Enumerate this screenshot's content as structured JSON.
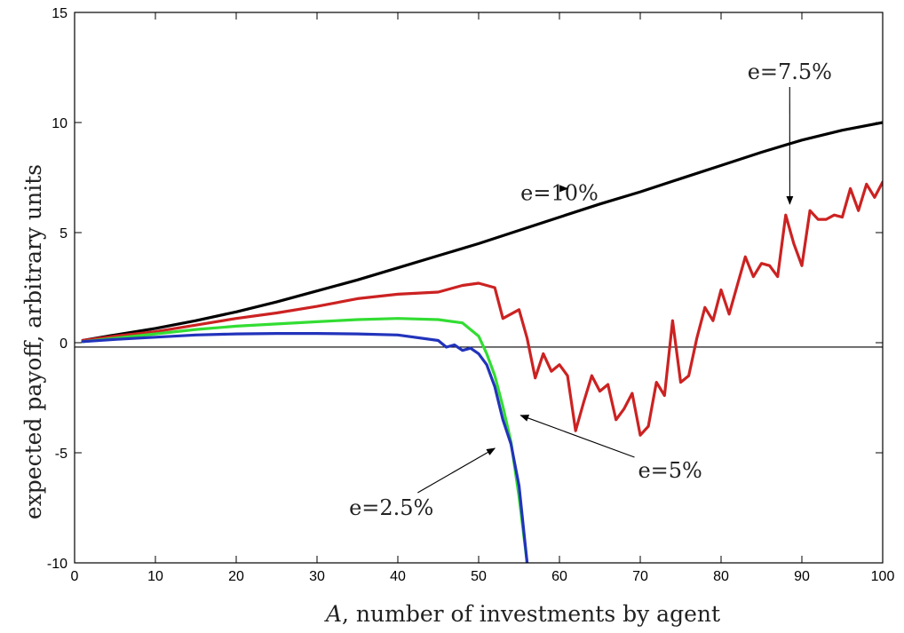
{
  "chart_data": {
    "type": "line",
    "title": "",
    "xlabel_var": "A",
    "xlabel_rest": ", number of investments by agent",
    "ylabel": "expected payoff, arbitrary units",
    "xlim": [
      0,
      100
    ],
    "ylim": [
      -10,
      15
    ],
    "xticks": [
      0,
      10,
      20,
      30,
      40,
      50,
      60,
      70,
      80,
      90,
      100
    ],
    "yticks": [
      -10,
      -5,
      0,
      5,
      10,
      15
    ],
    "reference_line_y": -0.2,
    "grid": false,
    "series": [
      {
        "name": "e=10%",
        "color": "#000000",
        "x": [
          1,
          5,
          10,
          15,
          20,
          25,
          30,
          35,
          40,
          45,
          50,
          55,
          60,
          65,
          70,
          75,
          80,
          85,
          90,
          95,
          100
        ],
        "y": [
          0.1,
          0.35,
          0.65,
          1.0,
          1.4,
          1.85,
          2.35,
          2.85,
          3.4,
          3.95,
          4.5,
          5.1,
          5.7,
          6.3,
          6.85,
          7.45,
          8.05,
          8.65,
          9.2,
          9.65,
          10.0
        ]
      },
      {
        "name": "e=7.5%",
        "color": "#cc2222",
        "x": [
          1,
          5,
          10,
          15,
          20,
          25,
          30,
          35,
          40,
          45,
          48,
          50,
          52,
          53,
          55,
          56,
          57,
          58,
          59,
          60,
          61,
          62,
          63,
          64,
          65,
          66,
          67,
          68,
          69,
          70,
          71,
          72,
          73,
          74,
          75,
          76,
          77,
          78,
          79,
          80,
          81,
          82,
          83,
          84,
          85,
          86,
          87,
          88,
          89,
          90,
          91,
          92,
          93,
          94,
          95,
          96,
          97,
          98,
          99,
          100
        ],
        "y": [
          0.1,
          0.3,
          0.5,
          0.8,
          1.1,
          1.35,
          1.65,
          2.0,
          2.2,
          2.3,
          2.6,
          2.7,
          2.5,
          1.1,
          1.5,
          0.2,
          -1.6,
          -0.5,
          -1.3,
          -1.0,
          -1.5,
          -4.0,
          -2.7,
          -1.5,
          -2.2,
          -1.9,
          -3.5,
          -3.0,
          -2.3,
          -4.2,
          -3.8,
          -1.8,
          -2.4,
          1.0,
          -1.8,
          -1.5,
          0.2,
          1.6,
          1.0,
          2.4,
          1.3,
          2.6,
          3.9,
          3.0,
          3.6,
          3.5,
          3.0,
          5.8,
          4.5,
          3.5,
          6.0,
          5.6,
          5.6,
          5.8,
          5.7,
          7.0,
          6.0,
          7.2,
          6.6,
          7.3
        ]
      },
      {
        "name": "e=5%",
        "color": "#33dd33",
        "x": [
          1,
          5,
          10,
          15,
          20,
          25,
          30,
          35,
          40,
          45,
          48,
          50,
          51,
          52,
          53,
          54,
          55,
          56
        ],
        "y": [
          0.05,
          0.2,
          0.4,
          0.6,
          0.75,
          0.85,
          0.95,
          1.05,
          1.1,
          1.05,
          0.9,
          0.3,
          -0.5,
          -1.5,
          -2.9,
          -4.5,
          -7.0,
          -10.0
        ]
      },
      {
        "name": "e=2.5%",
        "color": "#2233bb",
        "x": [
          1,
          5,
          10,
          15,
          20,
          25,
          30,
          35,
          40,
          45,
          46,
          47,
          48,
          49,
          50,
          51,
          52,
          53,
          54,
          55,
          56
        ],
        "y": [
          0.05,
          0.15,
          0.25,
          0.35,
          0.4,
          0.42,
          0.42,
          0.4,
          0.35,
          0.1,
          -0.2,
          -0.1,
          -0.35,
          -0.25,
          -0.5,
          -1.0,
          -2.0,
          -3.5,
          -4.6,
          -6.5,
          -10.0
        ]
      }
    ],
    "annotations": [
      {
        "text": "e=10%",
        "series": "e=10%",
        "x": 60,
        "y": 6.8,
        "target_x": 61,
        "target_y": 7.0
      },
      {
        "text": "e=7.5%",
        "series": "e=7.5%",
        "x": 88.5,
        "y": 12.3,
        "target_x": 88.5,
        "target_y": 6.3
      },
      {
        "text": "e=5%",
        "series": "e=5%",
        "x": 73.7,
        "y": -5.8,
        "target_x": 55.2,
        "target_y": -3.3
      },
      {
        "text": "e=2.5%",
        "series": "e=2.5%",
        "x": 39.2,
        "y": -7.5,
        "target_x": 52.0,
        "target_y": -4.8
      }
    ]
  }
}
